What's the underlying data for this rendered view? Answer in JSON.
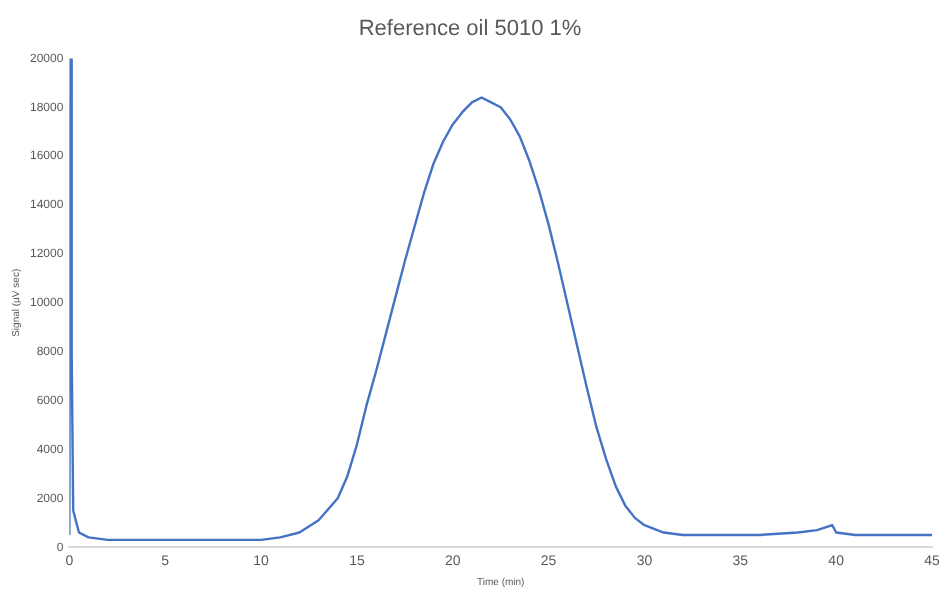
{
  "chart_data": {
    "type": "line",
    "title": "Reference oil 5010 1%",
    "xlabel": "Time (min)",
    "ylabel": "Signal (µV sec)",
    "xlim": [
      0,
      45
    ],
    "xticks": [
      0,
      5,
      10,
      15,
      20,
      25,
      30,
      35,
      40,
      45
    ],
    "ylim": [
      0,
      20000
    ],
    "yticks": [
      0,
      2000,
      4000,
      6000,
      8000,
      10000,
      12000,
      14000,
      16000,
      18000,
      20000
    ],
    "grid": false,
    "legend": false,
    "marker": "none",
    "series": [
      {
        "color": "#4472c4",
        "x": [
          0,
          0.05,
          0.12,
          0.2,
          0.5,
          1,
          2,
          5,
          8,
          10,
          11,
          12,
          13,
          14,
          14.5,
          15,
          15.5,
          16,
          16.5,
          17,
          17.5,
          18,
          18.5,
          19,
          19.5,
          20,
          20.5,
          21,
          21.5,
          22,
          22.5,
          23,
          23.5,
          24,
          24.5,
          25,
          25.5,
          26,
          26.5,
          27,
          27.5,
          28,
          28.5,
          29,
          29.5,
          30,
          31,
          32,
          34,
          36,
          38,
          39,
          39.8,
          40,
          41,
          43,
          45
        ],
        "values": [
          500,
          20000,
          8000,
          1500,
          600,
          400,
          300,
          300,
          300,
          300,
          400,
          600,
          1100,
          2000,
          2900,
          4200,
          5800,
          7200,
          8700,
          10200,
          11700,
          13100,
          14500,
          15700,
          16600,
          17300,
          17800,
          18200,
          18400,
          18200,
          18000,
          17500,
          16800,
          15800,
          14600,
          13200,
          11600,
          9900,
          8200,
          6500,
          4900,
          3600,
          2500,
          1700,
          1200,
          900,
          600,
          500,
          500,
          500,
          600,
          700,
          900,
          600,
          500,
          500,
          500
        ]
      }
    ]
  }
}
